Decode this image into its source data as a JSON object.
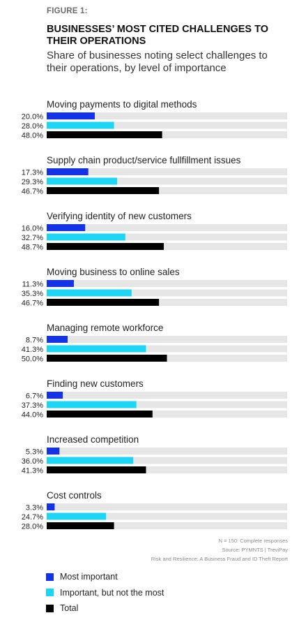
{
  "figure_label": "FIGURE 1:",
  "colors": {
    "most_important": "#1432e6",
    "important_not_most": "#20d4f2",
    "total": "#000000",
    "track": "#e6e6e6"
  },
  "chart_data": {
    "type": "bar",
    "orientation": "horizontal",
    "title": "BUSINESSES’ MOST CITED CHALLENGES TO THEIR OPERATIONS",
    "subtitle": "Share of businesses noting select challenges to their operations, by level of importance",
    "xlim": [
      0,
      100
    ],
    "value_suffix": "%",
    "categories": [
      "Moving payments to digital methods",
      "Supply chain product/service fullfillment issues",
      "Verifying identity of new customers",
      "Moving business to online sales",
      "Managing remote workforce",
      "Finding new customers",
      "Increased competition",
      "Cost controls"
    ],
    "series": [
      {
        "name": "Most important",
        "color_key": "most_important",
        "values": [
          20.0,
          17.3,
          16.0,
          11.3,
          8.7,
          6.7,
          5.3,
          3.3
        ]
      },
      {
        "name": "Important, but not the most",
        "color_key": "important_not_most",
        "values": [
          28.0,
          29.3,
          32.7,
          35.3,
          41.3,
          37.3,
          36.0,
          24.7
        ]
      },
      {
        "name": "Total",
        "color_key": "total",
        "values": [
          48.0,
          46.7,
          48.7,
          46.7,
          50.0,
          44.0,
          41.3,
          28.0
        ]
      }
    ],
    "legend_position": "bottom-left"
  },
  "notes": {
    "sample": "N = 150: Complete responses",
    "source": "Source: PYMNTS  |   TreviPay",
    "report": "Risk and Resilience: A Business Fraud and ID Theft Report"
  }
}
